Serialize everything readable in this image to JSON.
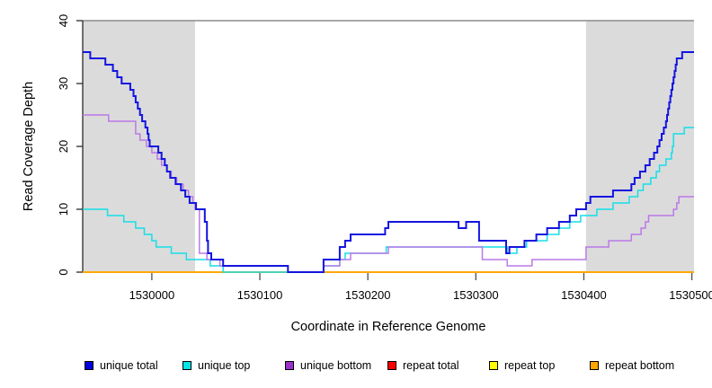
{
  "chart_data": {
    "type": "line",
    "step_mode": "after",
    "title": "",
    "xlabel": "Coordinate in Reference Genome",
    "ylabel": "Read Coverage Depth",
    "xlim": [
      1529936,
      1530502
    ],
    "ylim": [
      0,
      40
    ],
    "x_ticks": [
      "1530000",
      "1530100",
      "1530200",
      "1530300",
      "1530400",
      "1530500"
    ],
    "y_ticks": [
      "0",
      "10",
      "20",
      "30",
      "40"
    ],
    "grid": false,
    "legend_position": "bottom",
    "axis_color": "#2b2b2b",
    "reference_line": {
      "y": 40,
      "color": "#8c8c8c"
    },
    "shaded_regions": [
      {
        "x0": 1529936,
        "x1": 1530040,
        "color": "#dbdbdb"
      },
      {
        "x0": 1530402,
        "x1": 1530502,
        "color": "#dbdbdb"
      }
    ],
    "draw_order": [
      "repeat total",
      "repeat top",
      "repeat bottom",
      "unique top",
      "unique bottom",
      "unique total"
    ],
    "series": [
      {
        "name": "unique total",
        "color": "#1414e0",
        "legend_color": "#0000e0",
        "line_width": 2,
        "points": [
          [
            1529936,
            35
          ],
          [
            1529943,
            34
          ],
          [
            1529957,
            33
          ],
          [
            1529964,
            32
          ],
          [
            1529968,
            31
          ],
          [
            1529972,
            30
          ],
          [
            1529980,
            29
          ],
          [
            1529983,
            28
          ],
          [
            1529985,
            27
          ],
          [
            1529987,
            26
          ],
          [
            1529989,
            25
          ],
          [
            1529991,
            24
          ],
          [
            1529994,
            23
          ],
          [
            1529996,
            22
          ],
          [
            1529997,
            21
          ],
          [
            1529998,
            20
          ],
          [
            1530006,
            19
          ],
          [
            1530009,
            18
          ],
          [
            1530012,
            17
          ],
          [
            1530014,
            16
          ],
          [
            1530017,
            15
          ],
          [
            1530022,
            14
          ],
          [
            1530027,
            13
          ],
          [
            1530031,
            12
          ],
          [
            1530035,
            11
          ],
          [
            1530041,
            10
          ],
          [
            1530049,
            8
          ],
          [
            1530051,
            5
          ],
          [
            1530052,
            3
          ],
          [
            1530055,
            2
          ],
          [
            1530066,
            1
          ],
          [
            1530126,
            0
          ],
          [
            1530159,
            2
          ],
          [
            1530174,
            4
          ],
          [
            1530179,
            5
          ],
          [
            1530184,
            6
          ],
          [
            1530216,
            7
          ],
          [
            1530219,
            8
          ],
          [
            1530284,
            7
          ],
          [
            1530291,
            8
          ],
          [
            1530303,
            5
          ],
          [
            1530328,
            3
          ],
          [
            1530331,
            4
          ],
          [
            1530345,
            5
          ],
          [
            1530356,
            6
          ],
          [
            1530366,
            7
          ],
          [
            1530377,
            8
          ],
          [
            1530387,
            9
          ],
          [
            1530393,
            10
          ],
          [
            1530402,
            11
          ],
          [
            1530406,
            12
          ],
          [
            1530427,
            13
          ],
          [
            1530444,
            14
          ],
          [
            1530447,
            15
          ],
          [
            1530452,
            16
          ],
          [
            1530457,
            17
          ],
          [
            1530461,
            18
          ],
          [
            1530465,
            19
          ],
          [
            1530468,
            20
          ],
          [
            1530470,
            21
          ],
          [
            1530472,
            22
          ],
          [
            1530474,
            23
          ],
          [
            1530476,
            24
          ],
          [
            1530477,
            25
          ],
          [
            1530478,
            26
          ],
          [
            1530479,
            27
          ],
          [
            1530480,
            28
          ],
          [
            1530481,
            29
          ],
          [
            1530482,
            30
          ],
          [
            1530483,
            31
          ],
          [
            1530484,
            32
          ],
          [
            1530485,
            33
          ],
          [
            1530486,
            34
          ],
          [
            1530491,
            35
          ]
        ]
      },
      {
        "name": "unique top",
        "color": "#15dfe8",
        "legend_color": "#00e5e5",
        "line_width": 1.5,
        "points": [
          [
            1529936,
            10
          ],
          [
            1529959,
            9
          ],
          [
            1529974,
            8
          ],
          [
            1529985,
            7
          ],
          [
            1529993,
            6
          ],
          [
            1530000,
            5
          ],
          [
            1530004,
            4
          ],
          [
            1530018,
            3
          ],
          [
            1530032,
            2
          ],
          [
            1530054,
            1
          ],
          [
            1530066,
            0
          ],
          [
            1530159,
            1
          ],
          [
            1530174,
            2
          ],
          [
            1530179,
            3
          ],
          [
            1530217,
            4
          ],
          [
            1530329,
            3
          ],
          [
            1530338,
            4
          ],
          [
            1530347,
            5
          ],
          [
            1530366,
            6
          ],
          [
            1530377,
            7
          ],
          [
            1530387,
            8
          ],
          [
            1530397,
            9
          ],
          [
            1530412,
            10
          ],
          [
            1530427,
            11
          ],
          [
            1530442,
            12
          ],
          [
            1530450,
            13
          ],
          [
            1530455,
            14
          ],
          [
            1530462,
            15
          ],
          [
            1530467,
            16
          ],
          [
            1530470,
            17
          ],
          [
            1530476,
            18
          ],
          [
            1530481,
            19
          ],
          [
            1530482,
            20
          ],
          [
            1530483,
            22
          ],
          [
            1530493,
            23
          ]
        ]
      },
      {
        "name": "unique bottom",
        "color": "#bb79e8",
        "legend_color": "#9932cc",
        "line_width": 1.5,
        "points": [
          [
            1529936,
            25
          ],
          [
            1529960,
            24
          ],
          [
            1529985,
            22
          ],
          [
            1529989,
            21
          ],
          [
            1529995,
            20
          ],
          [
            1530000,
            19
          ],
          [
            1530005,
            18
          ],
          [
            1530009,
            17
          ],
          [
            1530014,
            16
          ],
          [
            1530018,
            15
          ],
          [
            1530023,
            14
          ],
          [
            1530029,
            13
          ],
          [
            1530034,
            12
          ],
          [
            1530038,
            11
          ],
          [
            1530040,
            10
          ],
          [
            1530044,
            3
          ],
          [
            1530051,
            2
          ],
          [
            1530063,
            1
          ],
          [
            1530126,
            0
          ],
          [
            1530159,
            1
          ],
          [
            1530174,
            2
          ],
          [
            1530184,
            3
          ],
          [
            1530219,
            4
          ],
          [
            1530306,
            2
          ],
          [
            1530329,
            1
          ],
          [
            1530352,
            2
          ],
          [
            1530402,
            4
          ],
          [
            1530423,
            5
          ],
          [
            1530444,
            6
          ],
          [
            1530453,
            7
          ],
          [
            1530457,
            8
          ],
          [
            1530460,
            9
          ],
          [
            1530483,
            10
          ],
          [
            1530486,
            11
          ],
          [
            1530488,
            12
          ]
        ]
      },
      {
        "name": "repeat total",
        "color": "#e60000",
        "legend_color": "#ff0000",
        "line_width": 1.5,
        "points": [
          [
            1529936,
            0
          ]
        ]
      },
      {
        "name": "repeat top",
        "color": "#ffff00",
        "legend_color": "#ffff00",
        "line_width": 1.5,
        "points": [
          [
            1529936,
            0
          ]
        ]
      },
      {
        "name": "repeat bottom",
        "color": "#ffa500",
        "legend_color": "#ffa500",
        "line_width": 1.8,
        "points": [
          [
            1529936,
            0
          ]
        ]
      }
    ]
  }
}
